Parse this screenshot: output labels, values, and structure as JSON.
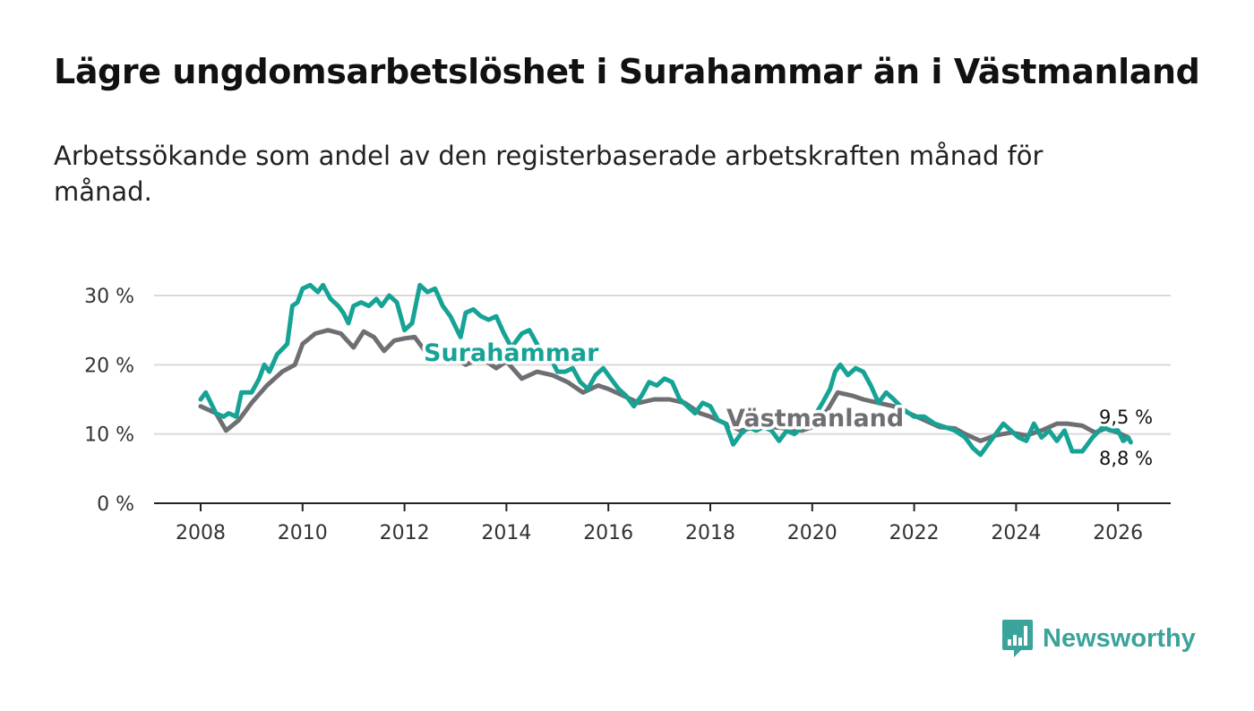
{
  "header": {
    "title": "Lägre ungdomsarbetslöshet i Surahammar än i Västmanland",
    "subtitle": "Arbetssökande som andel av den registerbaserade arbetskraften månad för månad."
  },
  "brand": {
    "name": "Newsworthy",
    "icon": "newsworthy-logo-icon",
    "color": "#3aa39a"
  },
  "chart_data": {
    "type": "line",
    "title": "Lägre ungdomsarbetslöshet i Surahammar än i Västmanland",
    "xlabel": "",
    "ylabel": "",
    "xlim": [
      2007.1,
      2027.1
    ],
    "ylim": [
      0,
      30
    ],
    "x_ticks": [
      "2008",
      "2010",
      "2012",
      "2014",
      "2016",
      "2018",
      "2020",
      "2022",
      "2024",
      "2026"
    ],
    "y_ticks": [
      "0 %",
      "10 %",
      "20 %",
      "30 %"
    ],
    "grid": true,
    "series": [
      {
        "name": "Västmanland",
        "color": "#6f6e73",
        "points": [
          [
            2008.0,
            14.0
          ],
          [
            2008.3,
            13.0
          ],
          [
            2008.5,
            10.5
          ],
          [
            2008.75,
            12.0
          ],
          [
            2009.0,
            14.5
          ],
          [
            2009.3,
            17.0
          ],
          [
            2009.6,
            19.0
          ],
          [
            2009.85,
            20.0
          ],
          [
            2010.0,
            23.0
          ],
          [
            2010.25,
            24.5
          ],
          [
            2010.5,
            25.0
          ],
          [
            2010.75,
            24.5
          ],
          [
            2011.0,
            22.5
          ],
          [
            2011.2,
            24.8
          ],
          [
            2011.4,
            24.0
          ],
          [
            2011.6,
            22.0
          ],
          [
            2011.8,
            23.5
          ],
          [
            2012.0,
            23.8
          ],
          [
            2012.2,
            24.0
          ],
          [
            2012.4,
            22.0
          ],
          [
            2012.6,
            20.5
          ],
          [
            2012.8,
            21.5
          ],
          [
            2013.0,
            21.0
          ],
          [
            2013.2,
            20.0
          ],
          [
            2013.5,
            21.0
          ],
          [
            2013.8,
            19.5
          ],
          [
            2014.0,
            20.5
          ],
          [
            2014.3,
            18.0
          ],
          [
            2014.6,
            19.0
          ],
          [
            2014.9,
            18.5
          ],
          [
            2015.2,
            17.5
          ],
          [
            2015.5,
            16.0
          ],
          [
            2015.8,
            17.0
          ],
          [
            2016.0,
            16.5
          ],
          [
            2016.3,
            15.5
          ],
          [
            2016.6,
            14.5
          ],
          [
            2016.9,
            15.0
          ],
          [
            2017.2,
            15.0
          ],
          [
            2017.5,
            14.5
          ],
          [
            2017.8,
            13.0
          ],
          [
            2018.0,
            12.5
          ],
          [
            2018.3,
            11.5
          ],
          [
            2018.6,
            10.5
          ],
          [
            2018.9,
            11.0
          ],
          [
            2019.2,
            11.0
          ],
          [
            2019.5,
            10.8
          ],
          [
            2019.8,
            10.5
          ],
          [
            2020.0,
            11.0
          ],
          [
            2020.3,
            13.5
          ],
          [
            2020.5,
            16.0
          ],
          [
            2020.8,
            15.5
          ],
          [
            2021.0,
            15.0
          ],
          [
            2021.3,
            14.5
          ],
          [
            2021.6,
            14.0
          ],
          [
            2021.9,
            13.0
          ],
          [
            2022.2,
            12.0
          ],
          [
            2022.5,
            11.0
          ],
          [
            2022.8,
            10.8
          ],
          [
            2023.0,
            10.0
          ],
          [
            2023.3,
            9.0
          ],
          [
            2023.6,
            9.8
          ],
          [
            2023.9,
            10.2
          ],
          [
            2024.2,
            9.8
          ],
          [
            2024.5,
            10.5
          ],
          [
            2024.8,
            11.5
          ],
          [
            2025.0,
            11.5
          ],
          [
            2025.3,
            11.2
          ],
          [
            2025.55,
            10.2
          ],
          [
            2025.75,
            10.8
          ],
          [
            2026.0,
            10.2
          ],
          [
            2026.2,
            9.5
          ]
        ]
      },
      {
        "name": "Surahammar",
        "color": "#16a396",
        "points": [
          [
            2008.0,
            15.0
          ],
          [
            2008.1,
            16.0
          ],
          [
            2008.3,
            13.0
          ],
          [
            2008.45,
            12.5
          ],
          [
            2008.55,
            13.0
          ],
          [
            2008.7,
            12.5
          ],
          [
            2008.8,
            16.0
          ],
          [
            2009.0,
            16.0
          ],
          [
            2009.15,
            18.0
          ],
          [
            2009.25,
            20.0
          ],
          [
            2009.35,
            19.0
          ],
          [
            2009.5,
            21.5
          ],
          [
            2009.7,
            23.0
          ],
          [
            2009.8,
            28.5
          ],
          [
            2009.9,
            29.0
          ],
          [
            2010.0,
            31.0
          ],
          [
            2010.15,
            31.5
          ],
          [
            2010.3,
            30.5
          ],
          [
            2010.4,
            31.5
          ],
          [
            2010.55,
            29.5
          ],
          [
            2010.7,
            28.5
          ],
          [
            2010.8,
            27.5
          ],
          [
            2010.9,
            26.0
          ],
          [
            2011.0,
            28.5
          ],
          [
            2011.15,
            29.0
          ],
          [
            2011.3,
            28.5
          ],
          [
            2011.45,
            29.5
          ],
          [
            2011.55,
            28.5
          ],
          [
            2011.7,
            30.0
          ],
          [
            2011.85,
            29.0
          ],
          [
            2012.0,
            25.0
          ],
          [
            2012.15,
            26.0
          ],
          [
            2012.3,
            31.5
          ],
          [
            2012.45,
            30.5
          ],
          [
            2012.6,
            31.0
          ],
          [
            2012.75,
            28.5
          ],
          [
            2012.9,
            27.0
          ],
          [
            2013.0,
            25.5
          ],
          [
            2013.1,
            24.0
          ],
          [
            2013.2,
            27.5
          ],
          [
            2013.35,
            28.0
          ],
          [
            2013.5,
            27.0
          ],
          [
            2013.65,
            26.5
          ],
          [
            2013.8,
            27.0
          ],
          [
            2013.95,
            24.5
          ],
          [
            2014.1,
            22.5
          ],
          [
            2014.3,
            24.5
          ],
          [
            2014.45,
            25.0
          ],
          [
            2014.6,
            23.0
          ],
          [
            2014.75,
            21.0
          ],
          [
            2014.9,
            20.5
          ],
          [
            2015.0,
            19.0
          ],
          [
            2015.15,
            19.0
          ],
          [
            2015.3,
            19.5
          ],
          [
            2015.45,
            17.5
          ],
          [
            2015.6,
            16.5
          ],
          [
            2015.75,
            18.5
          ],
          [
            2015.9,
            19.5
          ],
          [
            2016.05,
            18.0
          ],
          [
            2016.2,
            16.5
          ],
          [
            2016.35,
            15.5
          ],
          [
            2016.5,
            14.0
          ],
          [
            2016.65,
            15.5
          ],
          [
            2016.8,
            17.5
          ],
          [
            2016.95,
            17.0
          ],
          [
            2017.1,
            18.0
          ],
          [
            2017.25,
            17.5
          ],
          [
            2017.4,
            15.0
          ],
          [
            2017.55,
            14.0
          ],
          [
            2017.7,
            13.0
          ],
          [
            2017.85,
            14.5
          ],
          [
            2018.0,
            14.0
          ],
          [
            2018.15,
            12.0
          ],
          [
            2018.3,
            11.5
          ],
          [
            2018.45,
            8.5
          ],
          [
            2018.6,
            10.0
          ],
          [
            2018.75,
            11.0
          ],
          [
            2018.9,
            10.5
          ],
          [
            2019.05,
            11.0
          ],
          [
            2019.2,
            10.5
          ],
          [
            2019.35,
            9.0
          ],
          [
            2019.5,
            10.5
          ],
          [
            2019.65,
            10.0
          ],
          [
            2019.8,
            11.0
          ],
          [
            2020.0,
            12.0
          ],
          [
            2020.2,
            14.5
          ],
          [
            2020.35,
            16.5
          ],
          [
            2020.45,
            19.0
          ],
          [
            2020.55,
            20.0
          ],
          [
            2020.7,
            18.5
          ],
          [
            2020.85,
            19.5
          ],
          [
            2021.0,
            19.0
          ],
          [
            2021.15,
            17.0
          ],
          [
            2021.3,
            14.5
          ],
          [
            2021.45,
            16.0
          ],
          [
            2021.6,
            15.0
          ],
          [
            2021.8,
            13.5
          ],
          [
            2022.0,
            12.5
          ],
          [
            2022.2,
            12.5
          ],
          [
            2022.4,
            11.5
          ],
          [
            2022.6,
            11.0
          ],
          [
            2022.8,
            10.5
          ],
          [
            2023.0,
            9.5
          ],
          [
            2023.15,
            8.0
          ],
          [
            2023.3,
            7.0
          ],
          [
            2023.45,
            8.5
          ],
          [
            2023.6,
            10.0
          ],
          [
            2023.75,
            11.5
          ],
          [
            2023.9,
            10.5
          ],
          [
            2024.05,
            9.5
          ],
          [
            2024.2,
            9.0
          ],
          [
            2024.35,
            11.5
          ],
          [
            2024.5,
            9.5
          ],
          [
            2024.65,
            10.5
          ],
          [
            2024.8,
            9.0
          ],
          [
            2024.95,
            10.5
          ],
          [
            2025.1,
            7.5
          ],
          [
            2025.3,
            7.5
          ],
          [
            2025.5,
            9.5
          ],
          [
            2025.7,
            11.0
          ],
          [
            2025.85,
            10.5
          ],
          [
            2026.0,
            10.5
          ],
          [
            2026.1,
            9.0
          ],
          [
            2026.2,
            9.5
          ],
          [
            2026.25,
            8.8
          ]
        ]
      }
    ],
    "series_labels": [
      "Surahammar",
      "Västmanland"
    ],
    "end_labels": [
      {
        "series": "Västmanland",
        "value": 9.5,
        "text": "9,5 %"
      },
      {
        "series": "Surahammar",
        "value": 8.8,
        "text": "8,8 %"
      }
    ]
  }
}
